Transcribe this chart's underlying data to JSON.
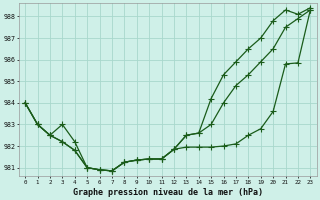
{
  "title": "Graphe pression niveau de la mer (hPa)",
  "background_color": "#cff0e8",
  "grid_color": "#a8d8cc",
  "line_color": "#1a5c1a",
  "x_min": 0,
  "x_max": 23,
  "y_min": 980.6,
  "y_max": 988.6,
  "y_ticks": [
    981,
    982,
    983,
    984,
    985,
    986,
    987,
    988
  ],
  "x_ticks": [
    0,
    1,
    2,
    3,
    4,
    5,
    6,
    7,
    8,
    9,
    10,
    11,
    12,
    13,
    14,
    15,
    16,
    17,
    18,
    19,
    20,
    21,
    22,
    23
  ],
  "series_bottom": [
    984.0,
    983.0,
    982.5,
    982.2,
    981.8,
    981.0,
    980.9,
    980.85,
    981.25,
    981.35,
    981.4,
    981.4,
    981.85,
    981.95,
    981.95,
    981.95,
    982.0,
    982.1,
    982.5,
    982.8,
    983.6,
    985.8,
    985.85,
    988.3
  ],
  "series_mid": [
    984.0,
    983.0,
    982.5,
    982.2,
    981.8,
    981.0,
    980.9,
    980.85,
    981.25,
    981.35,
    981.4,
    981.4,
    981.85,
    982.5,
    982.6,
    983.0,
    984.0,
    984.8,
    985.3,
    985.9,
    986.5,
    987.5,
    987.9,
    988.3
  ],
  "series_top": [
    984.0,
    983.0,
    982.5,
    983.0,
    982.2,
    981.0,
    980.9,
    980.85,
    981.25,
    981.35,
    981.4,
    981.4,
    981.85,
    982.5,
    982.6,
    984.2,
    985.3,
    985.9,
    986.5,
    987.0,
    987.8,
    988.3,
    988.1,
    988.4
  ]
}
